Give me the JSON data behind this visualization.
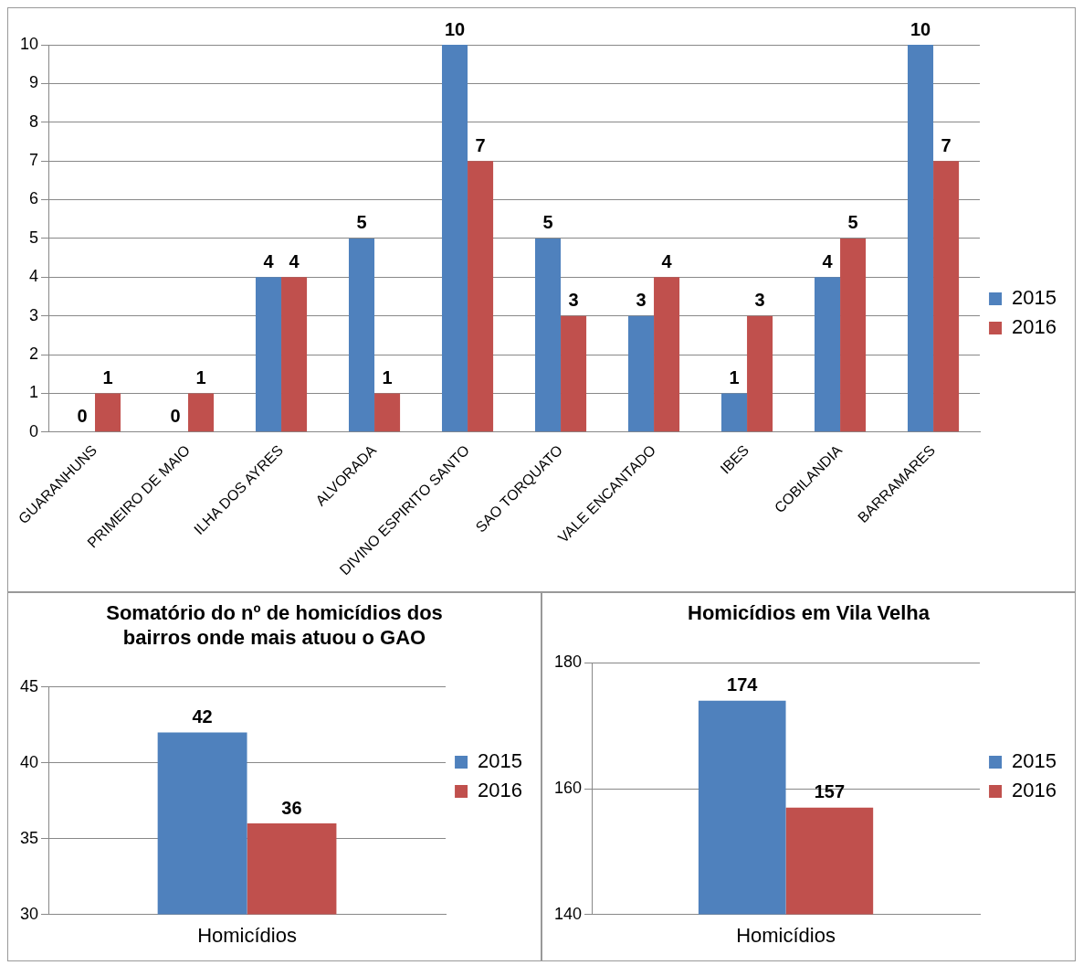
{
  "chart_data": [
    {
      "type": "bar",
      "categories": [
        "GUARANHUNS",
        "PRIMEIRO DE MAIO",
        "ILHA DOS AYRES",
        "ALVORADA",
        "DIVINO ESPIRITO SANTO",
        "SAO TORQUATO",
        "VALE ENCANTADO",
        "IBES",
        "COBILANDIA",
        "BARRAMARES"
      ],
      "series": [
        {
          "name": "2015",
          "color": "#4f81bd",
          "values": [
            0,
            0,
            4,
            5,
            10,
            5,
            3,
            1,
            4,
            10
          ]
        },
        {
          "name": "2016",
          "color": "#c0504d",
          "values": [
            1,
            1,
            4,
            1,
            7,
            3,
            4,
            3,
            5,
            7
          ]
        }
      ],
      "ylim": [
        0,
        10
      ],
      "yticks": [
        0,
        1,
        2,
        3,
        4,
        5,
        6,
        7,
        8,
        9,
        10
      ],
      "grid": "y",
      "legend": "right",
      "data_labels": true
    },
    {
      "type": "bar",
      "title": "Somatório do nº de homicídios dos bairros onde mais atuou o GAO",
      "categories": [
        "Homicídios"
      ],
      "series": [
        {
          "name": "2015",
          "color": "#4f81bd",
          "values": [
            42
          ]
        },
        {
          "name": "2016",
          "color": "#c0504d",
          "values": [
            36
          ]
        }
      ],
      "ylim": [
        30,
        45
      ],
      "yticks": [
        30,
        35,
        40,
        45
      ],
      "grid": "y",
      "legend": "right",
      "data_labels": true
    },
    {
      "type": "bar",
      "title": "Homicídios em Vila Velha",
      "categories": [
        "Homicídios"
      ],
      "series": [
        {
          "name": "2015",
          "color": "#4f81bd",
          "values": [
            174
          ]
        },
        {
          "name": "2016",
          "color": "#c0504d",
          "values": [
            157
          ]
        }
      ],
      "ylim": [
        140,
        180
      ],
      "yticks": [
        140,
        160,
        180
      ],
      "grid": "y",
      "legend": "right",
      "data_labels": true
    }
  ]
}
